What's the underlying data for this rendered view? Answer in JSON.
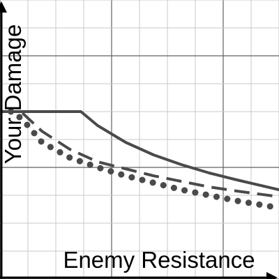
{
  "chart_data": {
    "type": "line",
    "xlabel": "Enemy Resistance",
    "ylabel": "Your Damage",
    "xlim": [
      0,
      10
    ],
    "ylim": [
      0,
      10
    ],
    "grid": true,
    "axis_color": "#000000",
    "series_color": "#4a4a4a",
    "grid_minor_color": "#c8c8c8",
    "grid_major_color": "#606060",
    "series": [
      {
        "style": "solid",
        "x": [
          0,
          1,
          2,
          2.9,
          3.5,
          4.5,
          5.5,
          6.5,
          7.5,
          8.5,
          10
        ],
        "y": [
          6.0,
          6.0,
          6.0,
          6.0,
          5.5,
          4.9,
          4.45,
          4.1,
          3.8,
          3.55,
          3.2
        ]
      },
      {
        "style": "dashed",
        "x": [
          0,
          0.75,
          1.5,
          2.5,
          3.5,
          4.5,
          5.5,
          6.5,
          7.5,
          8.5,
          10
        ],
        "y": [
          6.0,
          6.0,
          5.3,
          4.65,
          4.2,
          3.95,
          3.7,
          3.5,
          3.3,
          3.15,
          2.95
        ]
      },
      {
        "style": "dotted",
        "x": [
          0,
          0.5,
          1,
          1.5,
          2.5,
          3.5,
          4.5,
          5.5,
          6.5,
          7.5,
          8.5,
          10
        ],
        "y": [
          6.0,
          6.0,
          5.5,
          4.9,
          4.35,
          4.0,
          3.7,
          3.45,
          3.2,
          3.0,
          2.8,
          2.55
        ]
      }
    ]
  }
}
